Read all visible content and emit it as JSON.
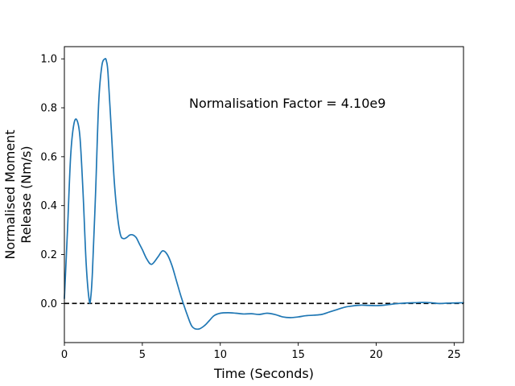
{
  "chart_data": {
    "type": "line",
    "title": "",
    "xlabel": "Time (Seconds)",
    "ylabel_lines": [
      "Normalised Moment",
      "Release (Nm/s)"
    ],
    "xlim": [
      0,
      25.6
    ],
    "ylim": [
      -0.16,
      1.05
    ],
    "x_ticks": [
      0,
      5,
      10,
      15,
      20,
      25
    ],
    "y_ticks": [
      0.0,
      0.2,
      0.4,
      0.6,
      0.8,
      1.0
    ],
    "x_tick_labels": [
      "0",
      "5",
      "10",
      "15",
      "20",
      "25"
    ],
    "y_tick_labels": [
      "0.0",
      "0.2",
      "0.4",
      "0.6",
      "0.8",
      "1.0"
    ],
    "grid": false,
    "annotation": "Normalisation Factor = 4.10e9",
    "reference_line": {
      "y": 0.0,
      "style": "dashed",
      "color": "#000000"
    },
    "series": [
      {
        "color": "#1f77b4",
        "x": [
          0,
          0.2,
          0.4,
          0.6,
          0.8,
          1.0,
          1.2,
          1.4,
          1.6,
          1.7,
          1.8,
          2.0,
          2.2,
          2.4,
          2.6,
          2.7,
          2.8,
          3.0,
          3.2,
          3.4,
          3.6,
          3.8,
          4.0,
          4.2,
          4.4,
          4.6,
          4.8,
          5.0,
          5.3,
          5.6,
          6.0,
          6.3,
          6.6,
          6.9,
          7.2,
          7.5,
          7.9,
          8.2,
          8.6,
          9.0,
          9.3,
          9.6,
          10.0,
          10.5,
          11.0,
          11.5,
          12.0,
          12.5,
          13.0,
          13.5,
          14.0,
          14.5,
          15.0,
          15.5,
          16.0,
          16.5,
          17.0,
          17.5,
          18.0,
          18.5,
          19.0,
          19.5,
          20.0,
          20.5,
          21.0,
          21.5,
          22.0,
          22.5,
          23.0,
          23.5,
          24.0,
          24.5,
          25.0,
          25.6
        ],
        "y": [
          0.02,
          0.3,
          0.6,
          0.73,
          0.75,
          0.68,
          0.45,
          0.16,
          0.01,
          0.03,
          0.13,
          0.45,
          0.82,
          0.97,
          1.0,
          0.99,
          0.94,
          0.72,
          0.5,
          0.36,
          0.28,
          0.265,
          0.27,
          0.28,
          0.28,
          0.27,
          0.245,
          0.22,
          0.18,
          0.16,
          0.19,
          0.215,
          0.2,
          0.155,
          0.09,
          0.025,
          -0.05,
          -0.095,
          -0.105,
          -0.09,
          -0.07,
          -0.05,
          -0.04,
          -0.038,
          -0.04,
          -0.043,
          -0.042,
          -0.045,
          -0.04,
          -0.045,
          -0.055,
          -0.058,
          -0.055,
          -0.05,
          -0.048,
          -0.045,
          -0.035,
          -0.025,
          -0.015,
          -0.01,
          -0.007,
          -0.008,
          -0.009,
          -0.007,
          -0.003,
          0.0,
          0.002,
          0.003,
          0.004,
          0.003,
          0.0,
          0.001,
          0.002,
          0.003
        ]
      }
    ]
  }
}
